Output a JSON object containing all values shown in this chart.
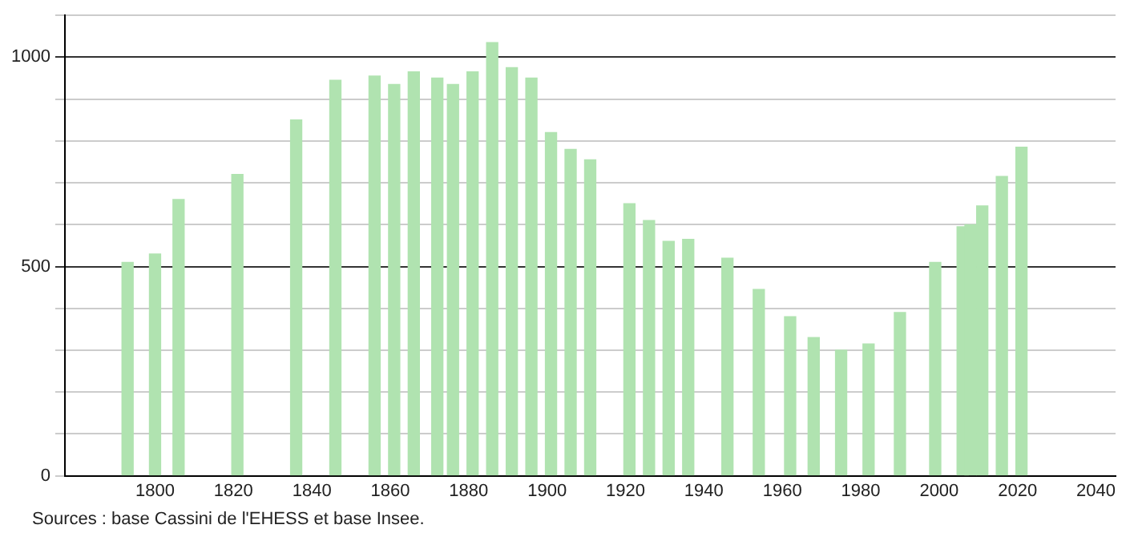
{
  "chart_data": {
    "type": "bar",
    "x": [
      1793,
      1800,
      1806,
      1821,
      1836,
      1846,
      1856,
      1861,
      1866,
      1872,
      1876,
      1881,
      1886,
      1891,
      1896,
      1901,
      1906,
      1911,
      1921,
      1926,
      1931,
      1936,
      1946,
      1954,
      1962,
      1968,
      1975,
      1982,
      1990,
      1999,
      2006,
      2008,
      2011,
      2016,
      2021
    ],
    "values": [
      510,
      530,
      660,
      720,
      850,
      945,
      955,
      935,
      965,
      950,
      935,
      965,
      1035,
      975,
      950,
      820,
      780,
      755,
      650,
      610,
      560,
      565,
      520,
      445,
      380,
      330,
      300,
      315,
      390,
      510,
      595,
      600,
      645,
      715,
      785
    ],
    "color": "#b0e3b0",
    "xlim": [
      1777,
      2045
    ],
    "xticks": [
      1800,
      1820,
      1840,
      1860,
      1880,
      1900,
      1920,
      1940,
      1960,
      1980,
      2000,
      2020,
      2040
    ],
    "ylim": [
      0,
      1100
    ],
    "yticks": [
      0,
      {
        "value": 100,
        "label": null
      },
      {
        "value": 200,
        "label": null
      },
      {
        "value": 300,
        "label": null
      },
      {
        "value": 400,
        "label": null
      },
      500,
      {
        "value": 600,
        "label": null
      },
      {
        "value": 700,
        "label": null
      },
      {
        "value": 800,
        "label": null
      },
      {
        "value": 900,
        "label": null
      },
      1000,
      {
        "value": 1100,
        "label": null
      }
    ],
    "grid": "y",
    "annotations": [
      "Sources : base Cassini de l'EHESS et base Insee."
    ]
  }
}
